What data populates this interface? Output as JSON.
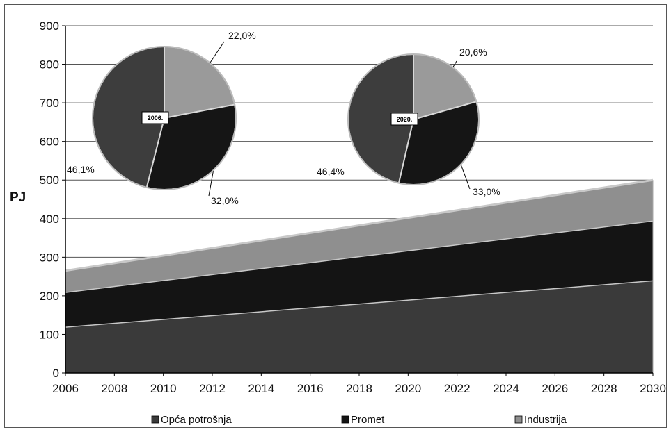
{
  "chart_data": [
    {
      "type": "area",
      "stacked": true,
      "ylabel": "PJ",
      "xlabel": "",
      "ylim": [
        0,
        900
      ],
      "yticks": [
        0,
        100,
        200,
        300,
        400,
        500,
        600,
        700,
        800,
        900
      ],
      "xlim": [
        2006,
        2030
      ],
      "xticks": [
        2006,
        2008,
        2010,
        2012,
        2014,
        2016,
        2018,
        2020,
        2022,
        2024,
        2026,
        2028,
        2030
      ],
      "grid": true,
      "legend_position": "bottom",
      "x": [
        2006,
        2030
      ],
      "series": [
        {
          "name": "Opća potrošnja",
          "values": [
            120,
            240
          ],
          "color": "#3a3a3a"
        },
        {
          "name": "Promet",
          "values": [
            90,
            155
          ],
          "color": "#141414"
        },
        {
          "name": "Industrija",
          "values": [
            55,
            105
          ],
          "color": "#8f8f8f"
        }
      ]
    },
    {
      "type": "pie",
      "label": "2006.",
      "slices": [
        {
          "label": "22,0%",
          "value": 22.0,
          "color": "#9a9a9a"
        },
        {
          "label": "32,0%",
          "value": 32.0,
          "color": "#151515"
        },
        {
          "label": "46,1%",
          "value": 46.1,
          "color": "#3d3d3d"
        }
      ]
    },
    {
      "type": "pie",
      "label": "2020.",
      "slices": [
        {
          "label": "20,6%",
          "value": 20.6,
          "color": "#9a9a9a"
        },
        {
          "label": "33,0%",
          "value": 33.0,
          "color": "#151515"
        },
        {
          "label": "46,4%",
          "value": 46.4,
          "color": "#3d3d3d"
        }
      ]
    }
  ]
}
